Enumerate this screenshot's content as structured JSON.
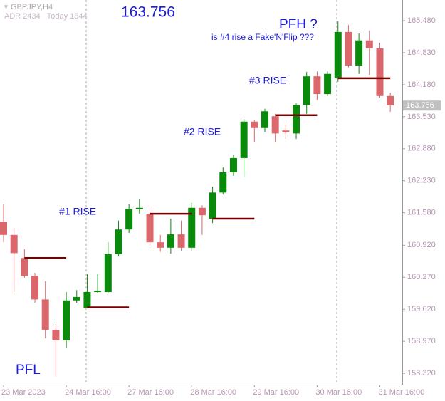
{
  "chart_data": {
    "type": "candlestick",
    "symbol": "GBPJPY,H4",
    "info": "ADR 2434   Today 1844",
    "title": "163.756",
    "current_price": {
      "value": 163.756,
      "label": "163.756"
    },
    "up_color": "#0a8a0a",
    "down_color": "#d9676b",
    "level_color": "#7a0000",
    "categories": [
      "23 Mar 2023",
      null,
      null,
      null,
      null,
      null,
      "24 Mar 16:00",
      null,
      null,
      null,
      null,
      null,
      "27 Mar 16:00",
      null,
      null,
      null,
      null,
      null,
      "28 Mar 16:00",
      null,
      null,
      null,
      null,
      null,
      "29 Mar 16:00",
      null,
      null,
      null,
      null,
      null,
      "30 Mar 16:00",
      null,
      null,
      null,
      null,
      null,
      "31 Mar 16:00",
      null
    ],
    "open": [
      161.4,
      161.13,
      160.66,
      160.3,
      159.82,
      159.2,
      158.99,
      159.8,
      159.65,
      159.97,
      159.97,
      160.74,
      161.24,
      161.65,
      161.56,
      160.98,
      160.87,
      161.14,
      160.87,
      161.68,
      161.46,
      161.99,
      162.4,
      162.69,
      163.43,
      163.3,
      163.54,
      163.25,
      163.19,
      163.77,
      164.35,
      163.99,
      164.31,
      165.25,
      164.57,
      165.08,
      164.92,
      163.95
    ],
    "high": [
      161.75,
      161.27,
      160.84,
      160.36,
      160.19,
      159.32,
      159.97,
      160.01,
      160.33,
      160.33,
      160.98,
      161.42,
      161.75,
      161.85,
      161.71,
      161.13,
      161.46,
      161.42,
      161.78,
      161.73,
      162.11,
      162.5,
      162.76,
      163.48,
      163.47,
      163.69,
      163.59,
      163.37,
      163.8,
      164.44,
      164.45,
      164.45,
      165.47,
      165.39,
      165.22,
      165.28,
      165.03,
      164.02
    ],
    "low": [
      160.98,
      159.97,
      160.26,
      159.75,
      159.03,
      158.26,
      158.84,
      159.75,
      159.64,
      159.94,
      159.94,
      160.69,
      161.17,
      161.56,
      160.91,
      160.79,
      160.75,
      160.81,
      160.81,
      161.13,
      161.37,
      161.95,
      162.33,
      162.31,
      163.01,
      163.22,
      163.01,
      163.08,
      163.08,
      163.59,
      163.87,
      163.95,
      164.24,
      164.53,
      164.4,
      164.38,
      163.92,
      163.63
    ],
    "close": [
      161.13,
      160.76,
      160.3,
      159.82,
      159.2,
      158.99,
      159.8,
      159.87,
      159.97,
      160.0,
      160.74,
      161.24,
      161.66,
      161.68,
      160.98,
      160.87,
      161.14,
      160.87,
      161.68,
      161.53,
      161.99,
      162.4,
      162.69,
      163.43,
      163.3,
      163.64,
      163.19,
      163.21,
      163.77,
      164.35,
      163.99,
      164.4,
      165.25,
      164.57,
      165.08,
      164.92,
      163.95,
      163.76
    ],
    "levels": [
      {
        "value": 160.66,
        "start": 2,
        "end": 6
      },
      {
        "value": 159.66,
        "start": 8,
        "end": 12
      },
      {
        "value": 161.56,
        "start": 14,
        "end": 18
      },
      {
        "value": 161.46,
        "start": 20,
        "end": 24
      },
      {
        "value": 163.56,
        "start": 26,
        "end": 30
      },
      {
        "value": 164.31,
        "start": 32,
        "end": 37
      }
    ],
    "annotations": [
      "#1 RISE",
      "#2 RISE",
      "#3 RISE",
      "PFH ?",
      "is #4 rise a Fake'N'Flip ???",
      "PFL"
    ],
    "ylim": [
      158.09,
      165.9
    ],
    "yticks": [
      {
        "value": 165.48,
        "label": "165.480"
      },
      {
        "value": 164.83,
        "label": "164.830"
      },
      {
        "value": 164.18,
        "label": "164.180"
      },
      {
        "value": 163.53,
        "label": "163.530"
      },
      {
        "value": 162.88,
        "label": "162.880"
      },
      {
        "value": 162.23,
        "label": "162.230"
      },
      {
        "value": 161.58,
        "label": "161.580"
      },
      {
        "value": 160.92,
        "label": "160.920"
      },
      {
        "value": 160.27,
        "label": "160.270"
      },
      {
        "value": 159.62,
        "label": "159.620"
      },
      {
        "value": 158.97,
        "label": "158.970"
      },
      {
        "value": 158.32,
        "label": "158.320"
      }
    ]
  }
}
